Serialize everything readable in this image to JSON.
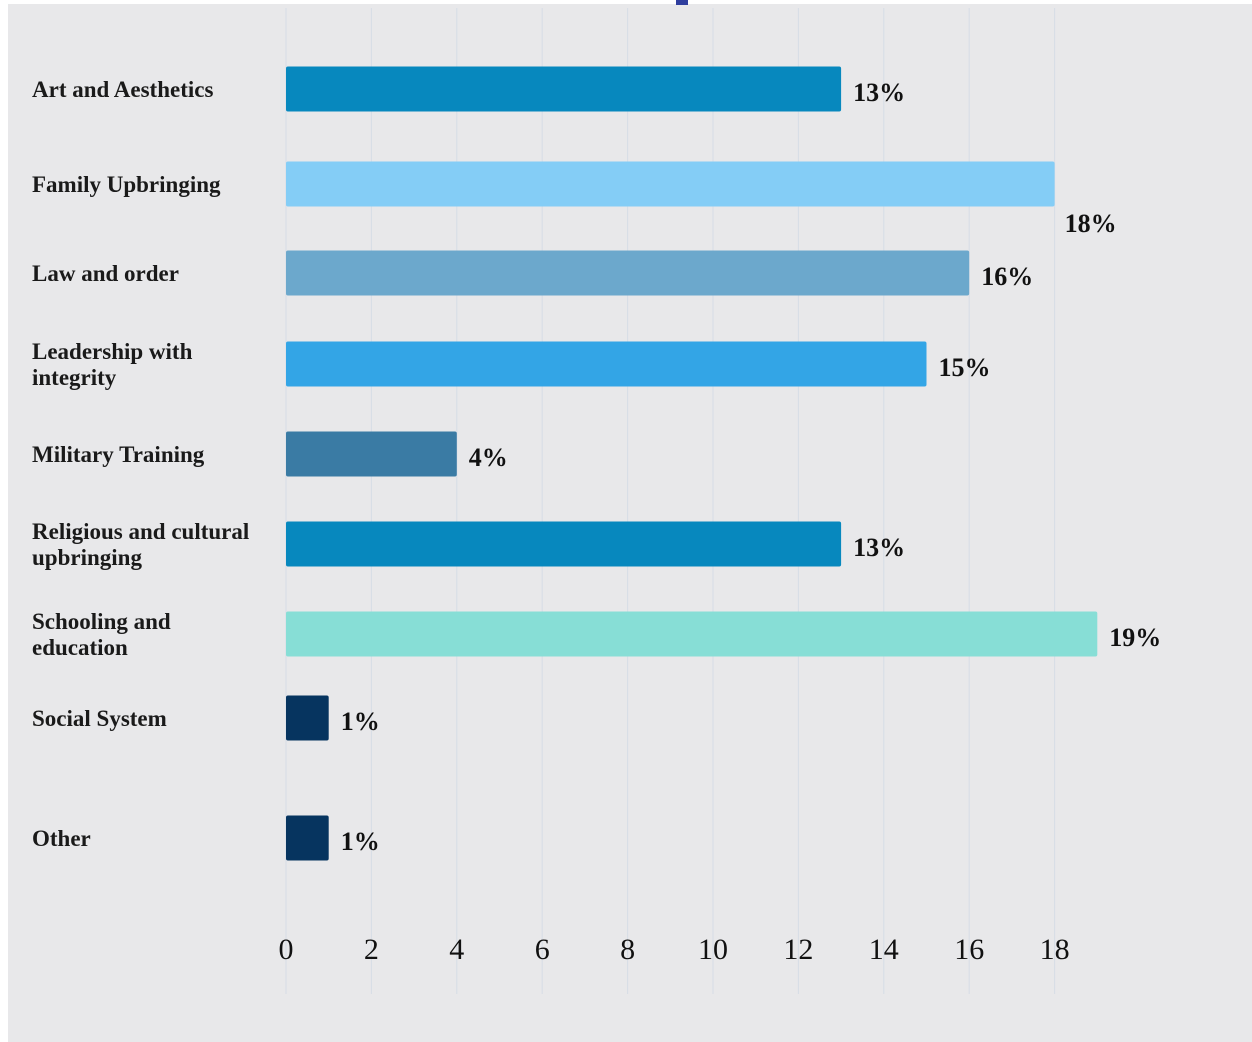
{
  "chart_data": {
    "type": "bar",
    "orientation": "horizontal",
    "title": "",
    "xlabel": "",
    "ylabel": "",
    "xlim": [
      0,
      19
    ],
    "grid": "vertical",
    "categories": [
      "Art and Aesthetics",
      "Family Upbringing",
      "Law and order",
      "Leadership with integrity",
      "Military Training",
      "Religious and cultural upbringing",
      "Schooling and education",
      "Social System",
      "Other"
    ],
    "values": [
      13,
      18,
      16,
      15,
      4,
      13,
      19,
      1,
      1
    ],
    "data_labels": [
      "13%",
      "18%",
      "16%",
      "15%",
      "4%",
      "13%",
      "19%",
      "1%",
      "1%"
    ],
    "colors": [
      "#0788be",
      "#84cdf6",
      "#6ca8cc",
      "#33a5e6",
      "#3a7ba4",
      "#0788be",
      "#87ded6",
      "#06345f",
      "#06345f"
    ],
    "x_ticks": [
      "0",
      "2",
      "4",
      "6",
      "8",
      "10",
      "12",
      "14",
      "16",
      "18"
    ],
    "accent_color": "#2f3e9e"
  }
}
